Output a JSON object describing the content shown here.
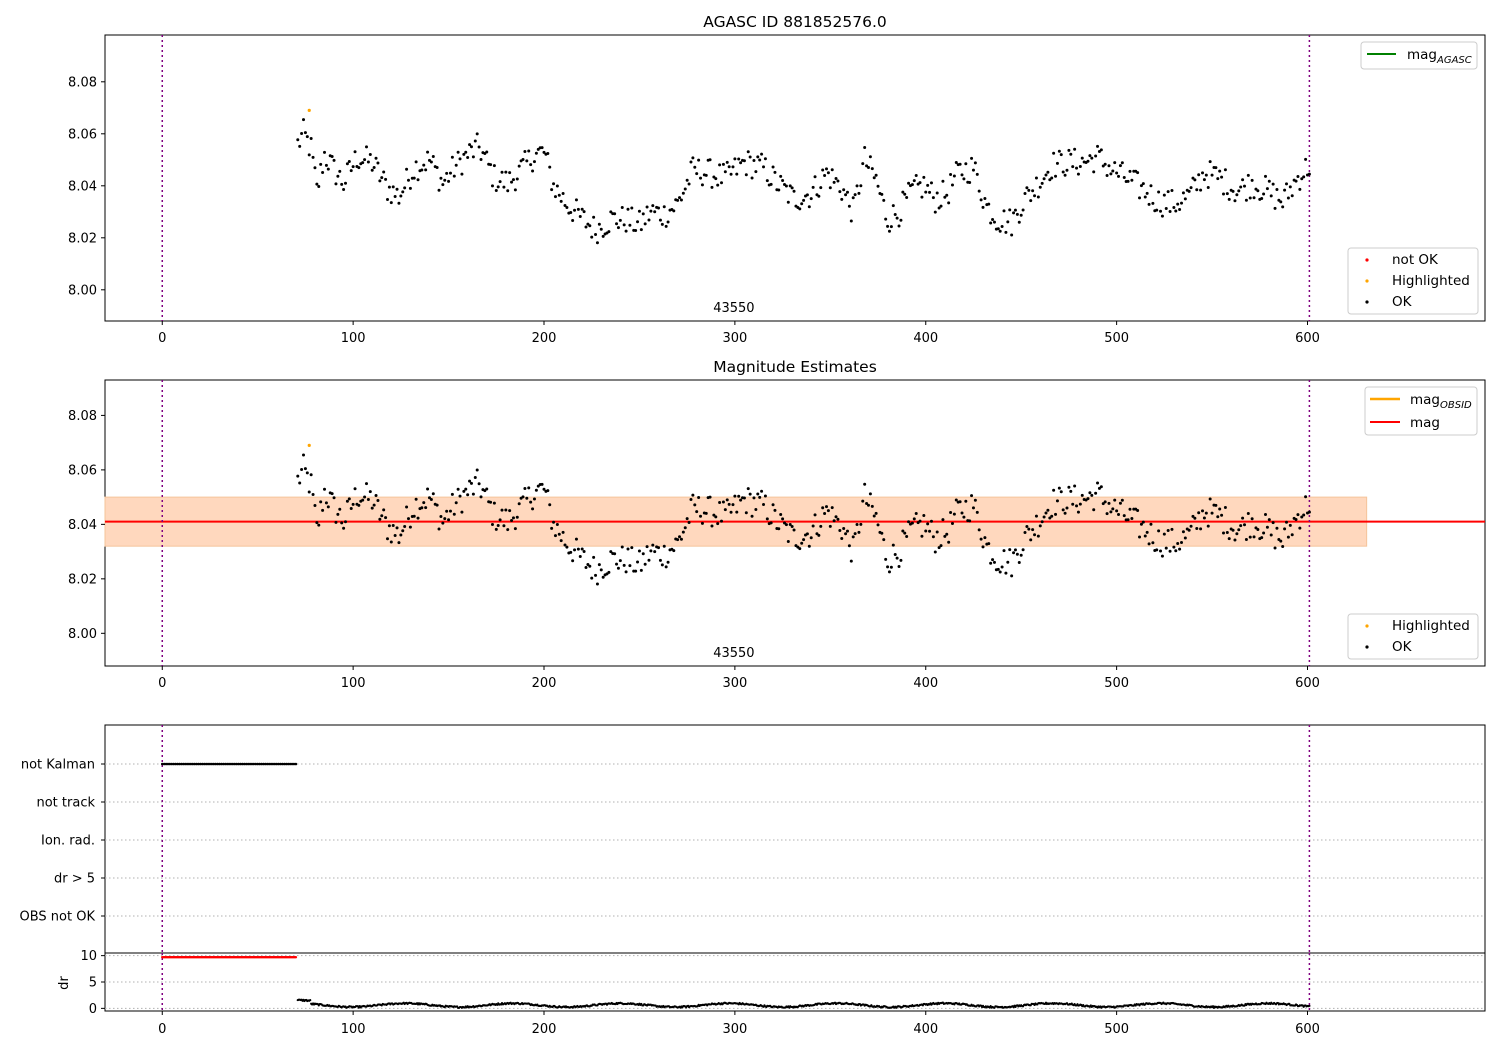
{
  "chart_data": [
    {
      "type": "scatter",
      "title": "AGASC ID 881852576.0",
      "xlim": [
        -30,
        693
      ],
      "ylim": [
        7.988,
        8.098
      ],
      "xticks": [
        0,
        100,
        200,
        300,
        400,
        500,
        600
      ],
      "yticks": [
        "8.00",
        "8.02",
        "8.04",
        "8.06",
        "8.08"
      ],
      "obsid_label": "43550",
      "vlines": [
        0,
        601
      ],
      "legend_upper": [
        {
          "label": "mag",
          "sub": "AGASC",
          "color": "#008000"
        }
      ],
      "legend_lower": [
        {
          "label": "not OK",
          "color": "#ff0000"
        },
        {
          "label": "Highlighted",
          "color": "#ffa500"
        },
        {
          "label": "OK",
          "color": "#000000"
        }
      ],
      "highlighted": [
        {
          "x": 77,
          "y": 8.069
        }
      ],
      "series": [
        {
          "x_start": 71,
          "x_end": 601,
          "anchors": [
            [
              71,
              8.056
            ],
            [
              74,
              8.06
            ],
            [
              78,
              8.054
            ],
            [
              81,
              8.038
            ],
            [
              85,
              8.052
            ],
            [
              90,
              8.046
            ],
            [
              95,
              8.041
            ],
            [
              102,
              8.051
            ],
            [
              110,
              8.049
            ],
            [
              118,
              8.039
            ],
            [
              124,
              8.036
            ],
            [
              132,
              8.047
            ],
            [
              140,
              8.05
            ],
            [
              147,
              8.041
            ],
            [
              153,
              8.047
            ],
            [
              160,
              8.052
            ],
            [
              166,
              8.055
            ],
            [
              174,
              8.043
            ],
            [
              181,
              8.041
            ],
            [
              188,
              8.046
            ],
            [
              195,
              8.052
            ],
            [
              200,
              8.053
            ],
            [
              205,
              8.04
            ],
            [
              212,
              8.033
            ],
            [
              219,
              8.028
            ],
            [
              227,
              8.023
            ],
            [
              235,
              8.027
            ],
            [
              243,
              8.027
            ],
            [
              250,
              8.025
            ],
            [
              256,
              8.03
            ],
            [
              263,
              8.029
            ],
            [
              270,
              8.033
            ],
            [
              278,
              8.046
            ],
            [
              286,
              8.045
            ],
            [
              295,
              8.043
            ],
            [
              305,
              8.049
            ],
            [
              315,
              8.047
            ],
            [
              322,
              8.041
            ],
            [
              331,
              8.035
            ],
            [
              340,
              8.037
            ],
            [
              348,
              8.045
            ],
            [
              356,
              8.039
            ],
            [
              362,
              8.03
            ],
            [
              368,
              8.05
            ],
            [
              374,
              8.042
            ],
            [
              380,
              8.027
            ],
            [
              386,
              8.03
            ],
            [
              393,
              8.038
            ],
            [
              399,
              8.04
            ],
            [
              405,
              8.035
            ],
            [
              411,
              8.037
            ],
            [
              417,
              8.045
            ],
            [
              425,
              8.047
            ],
            [
              432,
              8.032
            ],
            [
              438,
              8.027
            ],
            [
              445,
              8.026
            ],
            [
              451,
              8.034
            ],
            [
              458,
              8.04
            ],
            [
              466,
              8.048
            ],
            [
              474,
              8.049
            ],
            [
              482,
              8.049
            ],
            [
              490,
              8.051
            ],
            [
              498,
              8.046
            ],
            [
              507,
              8.042
            ],
            [
              515,
              8.038
            ],
            [
              522,
              8.034
            ],
            [
              530,
              8.033
            ],
            [
              538,
              8.036
            ],
            [
              546,
              8.045
            ],
            [
              554,
              8.043
            ],
            [
              563,
              8.038
            ],
            [
              571,
              8.041
            ],
            [
              579,
              8.038
            ],
            [
              587,
              8.034
            ],
            [
              595,
              8.043
            ],
            [
              601,
              8.048
            ]
          ]
        }
      ]
    },
    {
      "type": "scatter",
      "title": "Magnitude Estimates",
      "xlim": [
        -30,
        693
      ],
      "ylim": [
        7.988,
        8.093
      ],
      "xticks": [
        0,
        100,
        200,
        300,
        400,
        500,
        600
      ],
      "yticks": [
        "8.00",
        "8.02",
        "8.04",
        "8.06",
        "8.08"
      ],
      "obsid_label": "43550",
      "vlines": [
        0,
        601
      ],
      "hline": {
        "y": 8.041,
        "color": "#ff0000"
      },
      "band": {
        "x_start": -30,
        "x_end": 631,
        "y_low": 8.032,
        "y_high": 8.05
      },
      "legend_upper": [
        {
          "label": "mag",
          "sub": "OBSID",
          "color": "#ffa500"
        },
        {
          "label": "mag",
          "sub": "",
          "color": "#ff0000"
        }
      ],
      "legend_lower": [
        {
          "label": "Highlighted",
          "color": "#ffa500"
        },
        {
          "label": "OK",
          "color": "#000000"
        }
      ],
      "highlighted": [
        {
          "x": 77,
          "y": 8.069
        }
      ]
    },
    {
      "type": "scatter",
      "categories": [
        "not Kalman",
        "not track",
        "Ion. rad.",
        "dr > 5",
        "OBS not OK"
      ],
      "xlim": [
        -30,
        693
      ],
      "xticks": [
        0,
        100,
        200,
        300,
        400,
        500,
        600
      ],
      "flag_not_kalman": {
        "x_start": 0,
        "x_end": 70
      },
      "dr": {
        "ylabel": "dr",
        "yticks": [
          "0",
          "5",
          "10"
        ],
        "ylim": [
          -0.5,
          10.5
        ],
        "red_segment": {
          "x_start": 0,
          "x_end": 70,
          "y": 9.7
        },
        "black_segment": {
          "x_start": 71,
          "x_end": 601,
          "base": 0.6
        }
      }
    }
  ]
}
